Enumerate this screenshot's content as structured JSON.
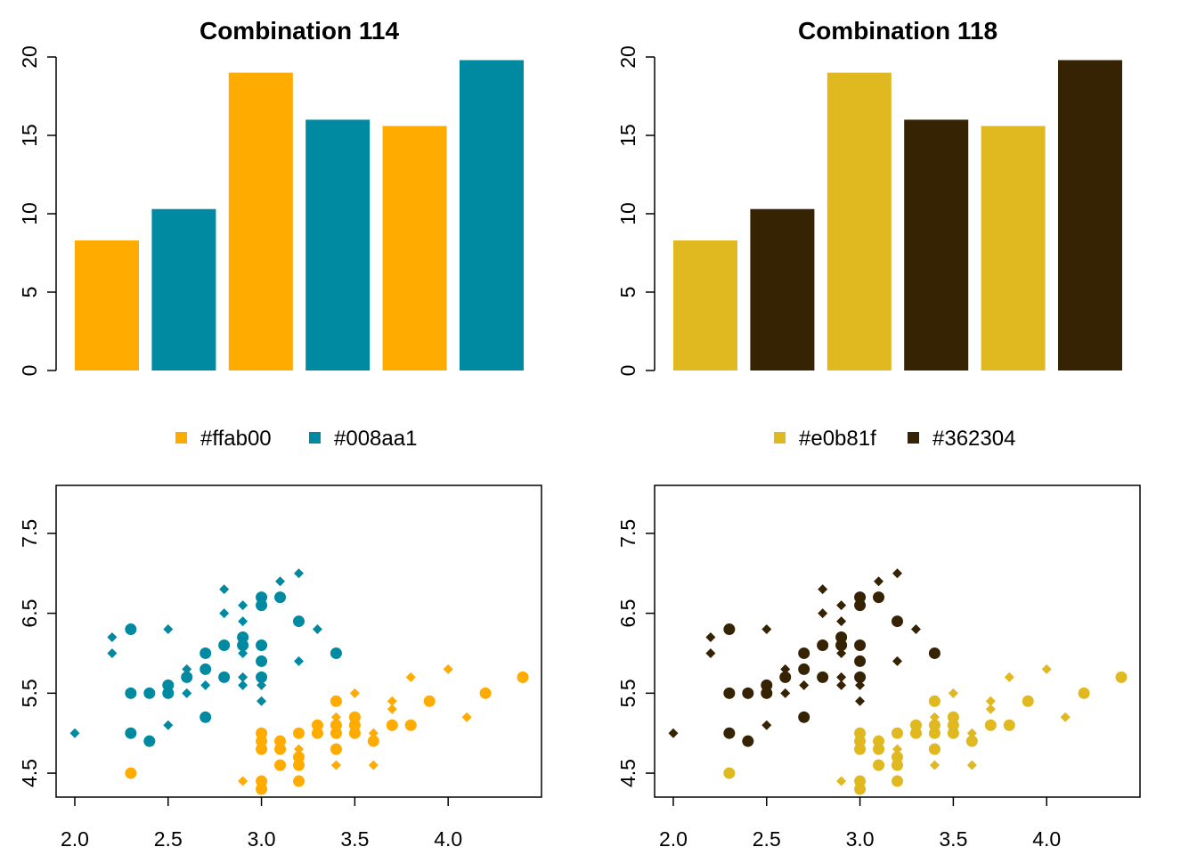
{
  "chart_data": [
    {
      "type": "bar",
      "title": "Combination 114",
      "categories": [
        "",
        "",
        "",
        "",
        "",
        ""
      ],
      "values": [
        8.3,
        10.3,
        19.0,
        16.0,
        15.6,
        19.8
      ],
      "bar_colors": [
        "#ffab00",
        "#008aa1",
        "#ffab00",
        "#008aa1",
        "#ffab00",
        "#008aa1"
      ],
      "ylim": [
        0,
        20
      ],
      "yticks": [
        "0",
        "5",
        "10",
        "15",
        "20"
      ],
      "ytick_values": [
        0,
        5,
        10,
        15,
        20
      ],
      "legend": [
        {
          "label": "#ffab00",
          "color": "#ffab00"
        },
        {
          "label": "#008aa1",
          "color": "#008aa1"
        }
      ],
      "legend_placement": "bottom",
      "grid": false
    },
    {
      "type": "bar",
      "title": "Combination 118",
      "categories": [
        "",
        "",
        "",
        "",
        "",
        ""
      ],
      "values": [
        8.3,
        10.3,
        19.0,
        16.0,
        15.6,
        19.8
      ],
      "bar_colors": [
        "#e0b81f",
        "#362304",
        "#e0b81f",
        "#362304",
        "#e0b81f",
        "#362304"
      ],
      "ylim": [
        0,
        20
      ],
      "yticks": [
        "0",
        "5",
        "10",
        "15",
        "20"
      ],
      "ytick_values": [
        0,
        5,
        10,
        15,
        20
      ],
      "legend": [
        {
          "label": "#e0b81f",
          "color": "#e0b81f"
        },
        {
          "label": "#362304",
          "color": "#362304"
        }
      ],
      "legend_placement": "bottom",
      "grid": false
    },
    {
      "type": "scatter",
      "xlim": [
        1.9,
        4.5
      ],
      "ylim": [
        4.2,
        8.1
      ],
      "xticks": [
        "2.0",
        "2.5",
        "3.0",
        "3.5",
        "4.0"
      ],
      "xtick_values": [
        2.0,
        2.5,
        3.0,
        3.5,
        4.0
      ],
      "yticks": [
        "4.5",
        "5.5",
        "6.5",
        "7.5"
      ],
      "ytick_values": [
        4.5,
        5.5,
        6.5,
        7.5
      ],
      "grid": false,
      "series": [
        {
          "color": "#ffab00",
          "marker": "circle",
          "points": [
            [
              2.3,
              4.5
            ],
            [
              3.0,
              4.3
            ],
            [
              3.0,
              4.4
            ],
            [
              3.0,
              4.8
            ],
            [
              3.0,
              4.9
            ],
            [
              3.0,
              5.0
            ],
            [
              3.1,
              4.6
            ],
            [
              3.1,
              4.8
            ],
            [
              3.1,
              4.9
            ],
            [
              3.2,
              4.4
            ],
            [
              3.2,
              4.6
            ],
            [
              3.2,
              4.7
            ],
            [
              3.2,
              5.0
            ],
            [
              3.3,
              5.0
            ],
            [
              3.3,
              5.1
            ],
            [
              3.4,
              4.8
            ],
            [
              3.4,
              5.0
            ],
            [
              3.4,
              5.1
            ],
            [
              3.4,
              5.4
            ],
            [
              3.5,
              5.0
            ],
            [
              3.5,
              5.1
            ],
            [
              3.5,
              5.2
            ],
            [
              3.6,
              4.9
            ],
            [
              3.7,
              5.1
            ],
            [
              3.8,
              5.1
            ],
            [
              3.9,
              5.4
            ],
            [
              4.2,
              5.5
            ],
            [
              4.4,
              5.7
            ]
          ]
        },
        {
          "color": "#ffab00",
          "marker": "diamond",
          "points": [
            [
              2.9,
              4.4
            ],
            [
              3.0,
              4.3
            ],
            [
              3.0,
              4.4
            ],
            [
              3.1,
              4.6
            ],
            [
              3.1,
              4.9
            ],
            [
              3.2,
              4.4
            ],
            [
              3.2,
              4.7
            ],
            [
              3.2,
              4.8
            ],
            [
              3.3,
              5.0
            ],
            [
              3.4,
              4.6
            ],
            [
              3.4,
              5.0
            ],
            [
              3.4,
              5.1
            ],
            [
              3.4,
              5.2
            ],
            [
              3.5,
              5.0
            ],
            [
              3.5,
              5.5
            ],
            [
              3.6,
              4.6
            ],
            [
              3.6,
              5.0
            ],
            [
              3.7,
              5.3
            ],
            [
              3.7,
              5.4
            ],
            [
              3.8,
              5.7
            ],
            [
              4.0,
              5.8
            ],
            [
              4.1,
              5.2
            ]
          ]
        },
        {
          "color": "#008aa1",
          "marker": "circle",
          "points": [
            [
              2.3,
              5.0
            ],
            [
              2.3,
              5.5
            ],
            [
              2.3,
              6.3
            ],
            [
              2.4,
              4.9
            ],
            [
              2.4,
              5.5
            ],
            [
              2.5,
              5.5
            ],
            [
              2.5,
              5.6
            ],
            [
              2.6,
              5.7
            ],
            [
              2.7,
              5.2
            ],
            [
              2.7,
              5.8
            ],
            [
              2.7,
              6.0
            ],
            [
              2.8,
              5.7
            ],
            [
              2.8,
              6.1
            ],
            [
              2.9,
              6.1
            ],
            [
              2.9,
              6.2
            ],
            [
              3.0,
              5.7
            ],
            [
              3.0,
              5.9
            ],
            [
              3.0,
              6.1
            ],
            [
              3.0,
              6.6
            ],
            [
              3.0,
              6.7
            ],
            [
              3.1,
              6.7
            ],
            [
              3.2,
              6.4
            ],
            [
              3.4,
              6.0
            ]
          ]
        },
        {
          "color": "#008aa1",
          "marker": "diamond",
          "points": [
            [
              2.0,
              5.0
            ],
            [
              2.2,
              6.0
            ],
            [
              2.2,
              6.2
            ],
            [
              2.5,
              5.1
            ],
            [
              2.5,
              6.3
            ],
            [
              2.6,
              5.5
            ],
            [
              2.6,
              5.8
            ],
            [
              2.7,
              5.6
            ],
            [
              2.8,
              6.5
            ],
            [
              2.8,
              6.8
            ],
            [
              2.9,
              5.6
            ],
            [
              2.9,
              5.7
            ],
            [
              2.9,
              6.0
            ],
            [
              2.9,
              6.4
            ],
            [
              2.9,
              6.6
            ],
            [
              3.0,
              5.4
            ],
            [
              3.0,
              5.6
            ],
            [
              3.1,
              6.9
            ],
            [
              3.2,
              5.9
            ],
            [
              3.2,
              7.0
            ],
            [
              3.3,
              6.3
            ]
          ]
        }
      ]
    },
    {
      "type": "scatter",
      "xlim": [
        1.9,
        4.5
      ],
      "ylim": [
        4.2,
        8.1
      ],
      "xticks": [
        "2.0",
        "2.5",
        "3.0",
        "3.5",
        "4.0"
      ],
      "xtick_values": [
        2.0,
        2.5,
        3.0,
        3.5,
        4.0
      ],
      "yticks": [
        "4.5",
        "5.5",
        "6.5",
        "7.5"
      ],
      "ytick_values": [
        4.5,
        5.5,
        6.5,
        7.5
      ],
      "grid": false,
      "series": [
        {
          "color": "#e0b81f",
          "marker": "circle",
          "points": [
            [
              2.3,
              4.5
            ],
            [
              3.0,
              4.3
            ],
            [
              3.0,
              4.4
            ],
            [
              3.0,
              4.8
            ],
            [
              3.0,
              4.9
            ],
            [
              3.0,
              5.0
            ],
            [
              3.1,
              4.6
            ],
            [
              3.1,
              4.8
            ],
            [
              3.1,
              4.9
            ],
            [
              3.2,
              4.4
            ],
            [
              3.2,
              4.6
            ],
            [
              3.2,
              4.7
            ],
            [
              3.2,
              5.0
            ],
            [
              3.3,
              5.0
            ],
            [
              3.3,
              5.1
            ],
            [
              3.4,
              4.8
            ],
            [
              3.4,
              5.0
            ],
            [
              3.4,
              5.1
            ],
            [
              3.4,
              5.4
            ],
            [
              3.5,
              5.0
            ],
            [
              3.5,
              5.1
            ],
            [
              3.5,
              5.2
            ],
            [
              3.6,
              4.9
            ],
            [
              3.7,
              5.1
            ],
            [
              3.8,
              5.1
            ],
            [
              3.9,
              5.4
            ],
            [
              4.2,
              5.5
            ],
            [
              4.4,
              5.7
            ]
          ]
        },
        {
          "color": "#e0b81f",
          "marker": "diamond",
          "points": [
            [
              2.9,
              4.4
            ],
            [
              3.0,
              4.3
            ],
            [
              3.0,
              4.4
            ],
            [
              3.1,
              4.6
            ],
            [
              3.1,
              4.9
            ],
            [
              3.2,
              4.4
            ],
            [
              3.2,
              4.7
            ],
            [
              3.2,
              4.8
            ],
            [
              3.3,
              5.0
            ],
            [
              3.4,
              4.6
            ],
            [
              3.4,
              5.0
            ],
            [
              3.4,
              5.1
            ],
            [
              3.4,
              5.2
            ],
            [
              3.5,
              5.0
            ],
            [
              3.5,
              5.5
            ],
            [
              3.6,
              4.6
            ],
            [
              3.6,
              5.0
            ],
            [
              3.7,
              5.3
            ],
            [
              3.7,
              5.4
            ],
            [
              3.8,
              5.7
            ],
            [
              4.0,
              5.8
            ],
            [
              4.1,
              5.2
            ]
          ]
        },
        {
          "color": "#362304",
          "marker": "circle",
          "points": [
            [
              2.3,
              5.0
            ],
            [
              2.3,
              5.5
            ],
            [
              2.3,
              6.3
            ],
            [
              2.4,
              4.9
            ],
            [
              2.4,
              5.5
            ],
            [
              2.5,
              5.5
            ],
            [
              2.5,
              5.6
            ],
            [
              2.6,
              5.7
            ],
            [
              2.7,
              5.2
            ],
            [
              2.7,
              5.8
            ],
            [
              2.7,
              6.0
            ],
            [
              2.8,
              5.7
            ],
            [
              2.8,
              6.1
            ],
            [
              2.9,
              6.1
            ],
            [
              2.9,
              6.2
            ],
            [
              3.0,
              5.7
            ],
            [
              3.0,
              5.9
            ],
            [
              3.0,
              6.1
            ],
            [
              3.0,
              6.6
            ],
            [
              3.0,
              6.7
            ],
            [
              3.1,
              6.7
            ],
            [
              3.2,
              6.4
            ],
            [
              3.4,
              6.0
            ]
          ]
        },
        {
          "color": "#362304",
          "marker": "diamond",
          "points": [
            [
              2.0,
              5.0
            ],
            [
              2.2,
              6.0
            ],
            [
              2.2,
              6.2
            ],
            [
              2.5,
              5.1
            ],
            [
              2.5,
              6.3
            ],
            [
              2.6,
              5.5
            ],
            [
              2.6,
              5.8
            ],
            [
              2.7,
              5.6
            ],
            [
              2.8,
              6.5
            ],
            [
              2.8,
              6.8
            ],
            [
              2.9,
              5.6
            ],
            [
              2.9,
              5.7
            ],
            [
              2.9,
              6.0
            ],
            [
              2.9,
              6.4
            ],
            [
              2.9,
              6.6
            ],
            [
              3.0,
              5.4
            ],
            [
              3.0,
              5.6
            ],
            [
              3.1,
              6.9
            ],
            [
              3.2,
              5.9
            ],
            [
              3.2,
              7.0
            ],
            [
              3.3,
              6.3
            ]
          ]
        }
      ]
    }
  ]
}
